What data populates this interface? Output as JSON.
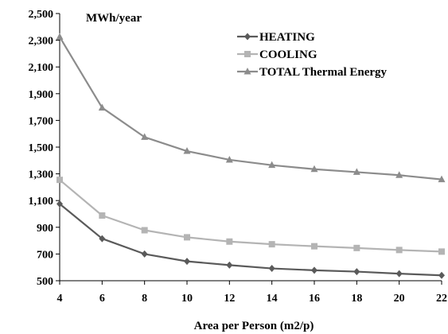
{
  "chart_data": {
    "type": "line",
    "title": "",
    "unit_label": "MWh/year",
    "xlabel": "Area per Person (m2/p)",
    "ylabel": "",
    "x": [
      4,
      6,
      8,
      10,
      12,
      14,
      16,
      18,
      20,
      22
    ],
    "x_tick_labels": [
      "4",
      "6",
      "8",
      "10",
      "12",
      "14",
      "16",
      "18",
      "20",
      "22"
    ],
    "ylim": [
      500,
      2500
    ],
    "y_ticks": [
      500,
      700,
      900,
      1100,
      1300,
      1500,
      1700,
      1900,
      2100,
      2300,
      2500
    ],
    "y_tick_labels": [
      "500",
      "700",
      "900",
      "1,100",
      "1,300",
      "1,500",
      "1,700",
      "1,900",
      "2,100",
      "2,300",
      "2,500"
    ],
    "grid": false,
    "legend_position": "top-right",
    "series": [
      {
        "name": "HEATING",
        "color": "#5a5a5a",
        "marker": "diamond",
        "values": [
          1075,
          815,
          700,
          645,
          617,
          592,
          578,
          568,
          553,
          540
        ]
      },
      {
        "name": "COOLING",
        "color": "#b4b4b4",
        "marker": "square",
        "values": [
          1255,
          988,
          878,
          825,
          793,
          773,
          758,
          745,
          730,
          718
        ]
      },
      {
        "name": "TOTAL Thermal Energy",
        "color": "#8c8c8c",
        "marker": "triangle",
        "values": [
          2325,
          1795,
          1575,
          1470,
          1405,
          1365,
          1335,
          1313,
          1290,
          1258
        ]
      }
    ]
  }
}
